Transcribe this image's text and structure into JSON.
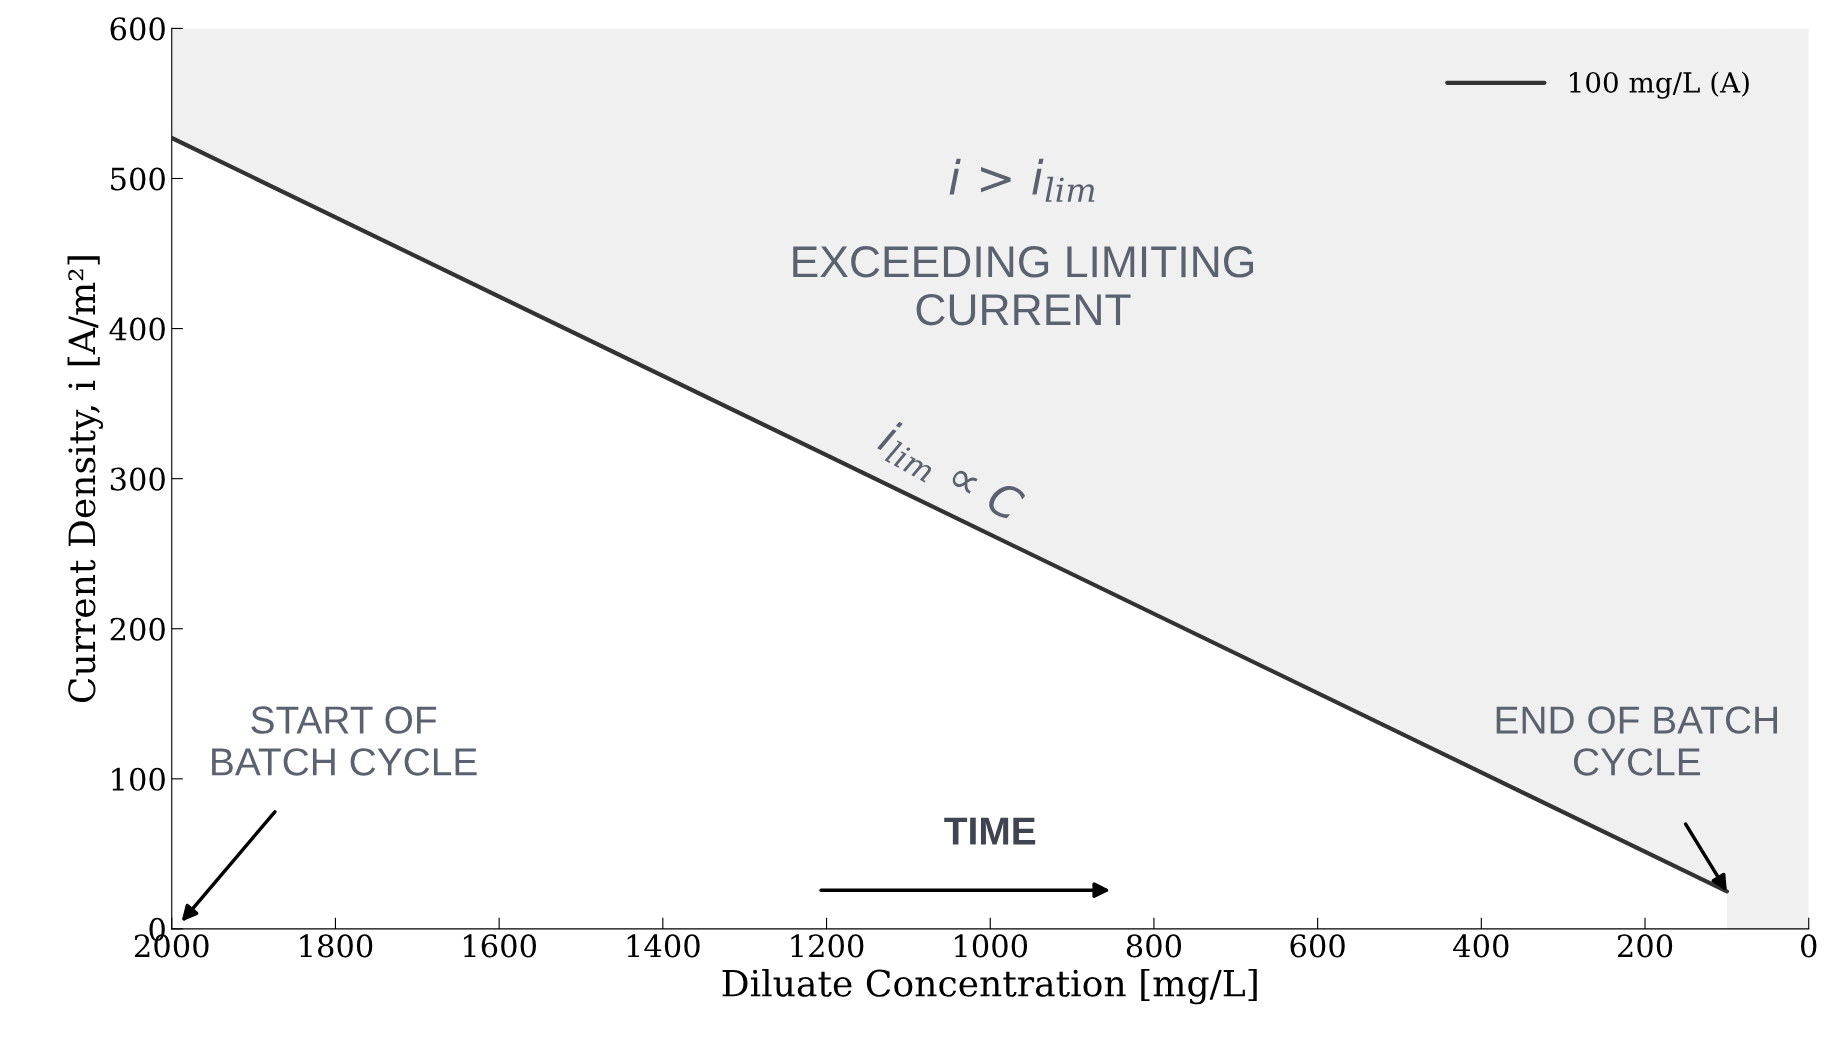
{
  "chart_data": {
    "type": "line",
    "xlabel": "Diluate Concentration [mg/L]",
    "ylabel": "Current Density, i [A/m²]",
    "series": [
      {
        "name": "100 mg/L (A)",
        "color": "#333333",
        "x": [
          2000,
          100
        ],
        "values": [
          527,
          25
        ],
        "lower": [
          527,
          25
        ],
        "upper": [
          600,
          600
        ]
      }
    ],
    "bands": [
      {
        "axis": "x",
        "from": 100,
        "to": 0,
        "color": "#f0f0f0"
      }
    ],
    "xlim": [
      2000,
      0
    ],
    "xticks": [
      2000,
      1800,
      1600,
      1400,
      1200,
      1000,
      800,
      600,
      400,
      200,
      0
    ],
    "ylim": [
      0,
      600
    ],
    "yticks": [
      0,
      100,
      200,
      300,
      400,
      500,
      600
    ],
    "grid": false,
    "legend": "top right",
    "line_style": "solid",
    "marker": "none",
    "annotations": [
      "i > i$_{lim}$",
      "EXCEEDING LIMITING\nCURRENT",
      "i$_{lim}$ ∝ C",
      "TIME",
      "START OF\nBATCH CYCLE",
      {
        "text": "END OF BATCH\nCYCLE",
        "x": 100,
        "y": 25
      }
    ]
  }
}
